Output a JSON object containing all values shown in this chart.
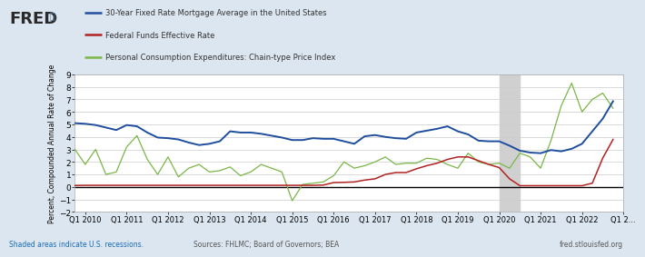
{
  "ylabel": "Percent, Compounded Annual Rate of Change",
  "background_color": "#dce6f0",
  "plot_background": "#ffffff",
  "ylim": [
    -2,
    9
  ],
  "yticks": [
    -2,
    -1,
    0,
    1,
    2,
    3,
    4,
    5,
    6,
    7,
    8,
    9
  ],
  "recession_shading": [
    [
      2020.0,
      2020.5
    ]
  ],
  "legend_labels": [
    "30-Year Fixed Rate Mortgage Average in the United States",
    "Federal Funds Effective Rate",
    "Personal Consumption Expenditures: Chain-type Price Index"
  ],
  "legend_colors": [
    "#1f4e9e",
    "#b22222",
    "#7ab648"
  ],
  "footer_left": "Shaded areas indicate U.S. recessions.",
  "footer_center": "Sources: FHLMC; Board of Governors; BEA",
  "footer_right": "fred.stlouisfed.org",
  "mortgage_x": [
    2009.75,
    2010.0,
    2010.25,
    2010.5,
    2010.75,
    2011.0,
    2011.25,
    2011.5,
    2011.75,
    2012.0,
    2012.25,
    2012.5,
    2012.75,
    2013.0,
    2013.25,
    2013.5,
    2013.75,
    2014.0,
    2014.25,
    2014.5,
    2014.75,
    2015.0,
    2015.25,
    2015.5,
    2015.75,
    2016.0,
    2016.25,
    2016.5,
    2016.75,
    2017.0,
    2017.25,
    2017.5,
    2017.75,
    2018.0,
    2018.25,
    2018.5,
    2018.75,
    2019.0,
    2019.25,
    2019.5,
    2019.75,
    2020.0,
    2020.25,
    2020.5,
    2020.75,
    2021.0,
    2021.25,
    2021.5,
    2021.75,
    2022.0,
    2022.25,
    2022.5,
    2022.75
  ],
  "mortgage_y": [
    5.1,
    5.05,
    4.95,
    4.75,
    4.55,
    4.95,
    4.85,
    4.35,
    3.95,
    3.9,
    3.8,
    3.55,
    3.35,
    3.45,
    3.65,
    4.45,
    4.35,
    4.35,
    4.25,
    4.1,
    3.95,
    3.75,
    3.75,
    3.9,
    3.85,
    3.85,
    3.65,
    3.45,
    4.05,
    4.15,
    4.0,
    3.9,
    3.85,
    4.35,
    4.5,
    4.65,
    4.85,
    4.45,
    4.2,
    3.7,
    3.65,
    3.65,
    3.3,
    2.9,
    2.75,
    2.7,
    2.95,
    2.85,
    3.05,
    3.45,
    4.45,
    5.45,
    6.85
  ],
  "fedfunds_x": [
    2009.75,
    2010.0,
    2010.25,
    2010.5,
    2010.75,
    2011.0,
    2011.25,
    2011.5,
    2011.75,
    2012.0,
    2012.25,
    2012.5,
    2012.75,
    2013.0,
    2013.25,
    2013.5,
    2013.75,
    2014.0,
    2014.25,
    2014.5,
    2014.75,
    2015.0,
    2015.25,
    2015.5,
    2015.75,
    2016.0,
    2016.25,
    2016.5,
    2016.75,
    2017.0,
    2017.25,
    2017.5,
    2017.75,
    2018.0,
    2018.25,
    2018.5,
    2018.75,
    2019.0,
    2019.25,
    2019.5,
    2019.75,
    2020.0,
    2020.25,
    2020.5,
    2020.75,
    2021.0,
    2021.25,
    2021.5,
    2021.75,
    2022.0,
    2022.25,
    2022.5,
    2022.75
  ],
  "fedfunds_y": [
    0.12,
    0.13,
    0.13,
    0.13,
    0.13,
    0.13,
    0.13,
    0.13,
    0.13,
    0.13,
    0.13,
    0.13,
    0.13,
    0.13,
    0.13,
    0.13,
    0.13,
    0.13,
    0.13,
    0.13,
    0.13,
    0.13,
    0.13,
    0.13,
    0.15,
    0.35,
    0.37,
    0.4,
    0.55,
    0.65,
    1.0,
    1.15,
    1.15,
    1.45,
    1.7,
    1.9,
    2.2,
    2.4,
    2.4,
    2.1,
    1.8,
    1.55,
    0.65,
    0.1,
    0.1,
    0.1,
    0.1,
    0.1,
    0.1,
    0.1,
    0.3,
    2.3,
    3.8
  ],
  "pce_x": [
    2009.75,
    2010.0,
    2010.25,
    2010.5,
    2010.75,
    2011.0,
    2011.25,
    2011.5,
    2011.75,
    2012.0,
    2012.25,
    2012.5,
    2012.75,
    2013.0,
    2013.25,
    2013.5,
    2013.75,
    2014.0,
    2014.25,
    2014.5,
    2014.75,
    2015.0,
    2015.25,
    2015.5,
    2015.75,
    2016.0,
    2016.25,
    2016.5,
    2016.75,
    2017.0,
    2017.25,
    2017.5,
    2017.75,
    2018.0,
    2018.25,
    2018.5,
    2018.75,
    2019.0,
    2019.25,
    2019.5,
    2019.75,
    2020.0,
    2020.25,
    2020.5,
    2020.75,
    2021.0,
    2021.25,
    2021.5,
    2021.75,
    2022.0,
    2022.25,
    2022.5,
    2022.75
  ],
  "pce_y": [
    3.0,
    1.8,
    3.0,
    1.0,
    1.2,
    3.2,
    4.1,
    2.2,
    1.0,
    2.4,
    0.8,
    1.5,
    1.8,
    1.2,
    1.3,
    1.6,
    0.9,
    1.2,
    1.8,
    1.5,
    1.2,
    -1.1,
    0.2,
    0.3,
    0.4,
    0.9,
    2.0,
    1.5,
    1.7,
    2.0,
    2.4,
    1.8,
    1.9,
    1.9,
    2.3,
    2.2,
    1.8,
    1.5,
    2.7,
    2.0,
    1.8,
    1.9,
    1.5,
    2.7,
    2.4,
    1.5,
    3.7,
    6.5,
    8.3,
    6.0,
    7.0,
    7.5,
    6.3
  ],
  "xlim": [
    2009.75,
    2023.0
  ],
  "xtick_positions": [
    2010.0,
    2011.0,
    2012.0,
    2013.0,
    2014.0,
    2015.0,
    2016.0,
    2017.0,
    2018.0,
    2019.0,
    2020.0,
    2021.0,
    2022.0,
    2023.0
  ],
  "xtick_labels": [
    "Q1 2010",
    "Q1 2011",
    "Q1 2012",
    "Q1 2013",
    "Q1 2014",
    "Q1 2015",
    "Q1 2016",
    "Q1 2017",
    "Q1 2018",
    "Q1 2019",
    "Q1 2020",
    "Q1 2021",
    "Q1 2022",
    "Q1 2..."
  ]
}
